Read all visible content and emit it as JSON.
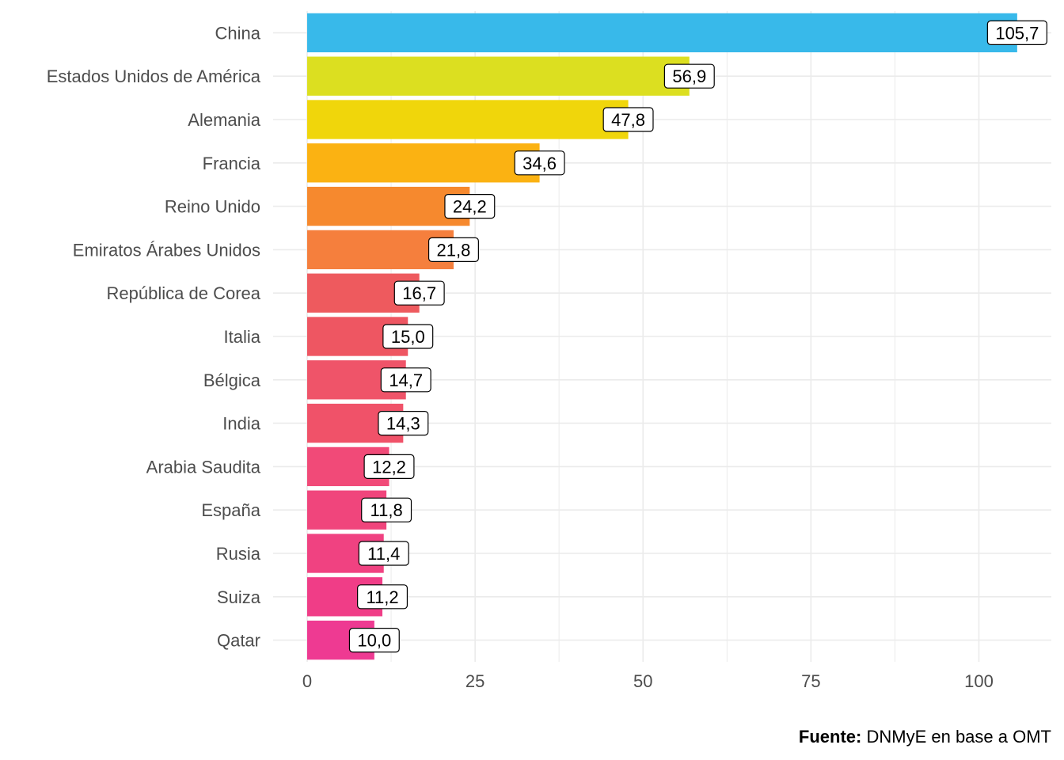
{
  "chart_data": {
    "type": "bar",
    "orientation": "horizontal",
    "categories": [
      "China",
      "Estados Unidos de América",
      "Alemania",
      "Francia",
      "Reino Unido",
      "Emiratos Árabes Unidos",
      "República de Corea",
      "Italia",
      "Bélgica",
      "India",
      "Arabia Saudita",
      "España",
      "Rusia",
      "Suiza",
      "Qatar"
    ],
    "values": [
      105.7,
      56.9,
      47.8,
      34.6,
      24.2,
      21.8,
      16.7,
      15.0,
      14.7,
      14.3,
      12.2,
      11.8,
      11.4,
      11.2,
      10.0
    ],
    "value_labels": [
      "105,7",
      "56,9",
      "47,8",
      "34,6",
      "24,2",
      "21,8",
      "16,7",
      "15,0",
      "14,7",
      "14,3",
      "12,2",
      "11,8",
      "11,4",
      "11,2",
      "10,0"
    ],
    "colors": [
      "#38B9EA",
      "#DCDF20",
      "#F0D60B",
      "#FBB212",
      "#F6892E",
      "#F57F3D",
      "#EE5A5E",
      "#EE5662",
      "#EF5469",
      "#F05269",
      "#F14A78",
      "#F0457C",
      "#F04281",
      "#F03D87",
      "#EE3A92"
    ],
    "xlim": [
      0,
      110
    ],
    "x_ticks": [
      0,
      25,
      50,
      75,
      100
    ],
    "x_tick_labels": [
      "0",
      "25",
      "50",
      "75",
      "100"
    ],
    "xlabel": "",
    "ylabel": "",
    "grid": true,
    "legend": "none"
  },
  "caption": {
    "bold": "Fuente:",
    "text": " DNMyE en base a OMT"
  }
}
